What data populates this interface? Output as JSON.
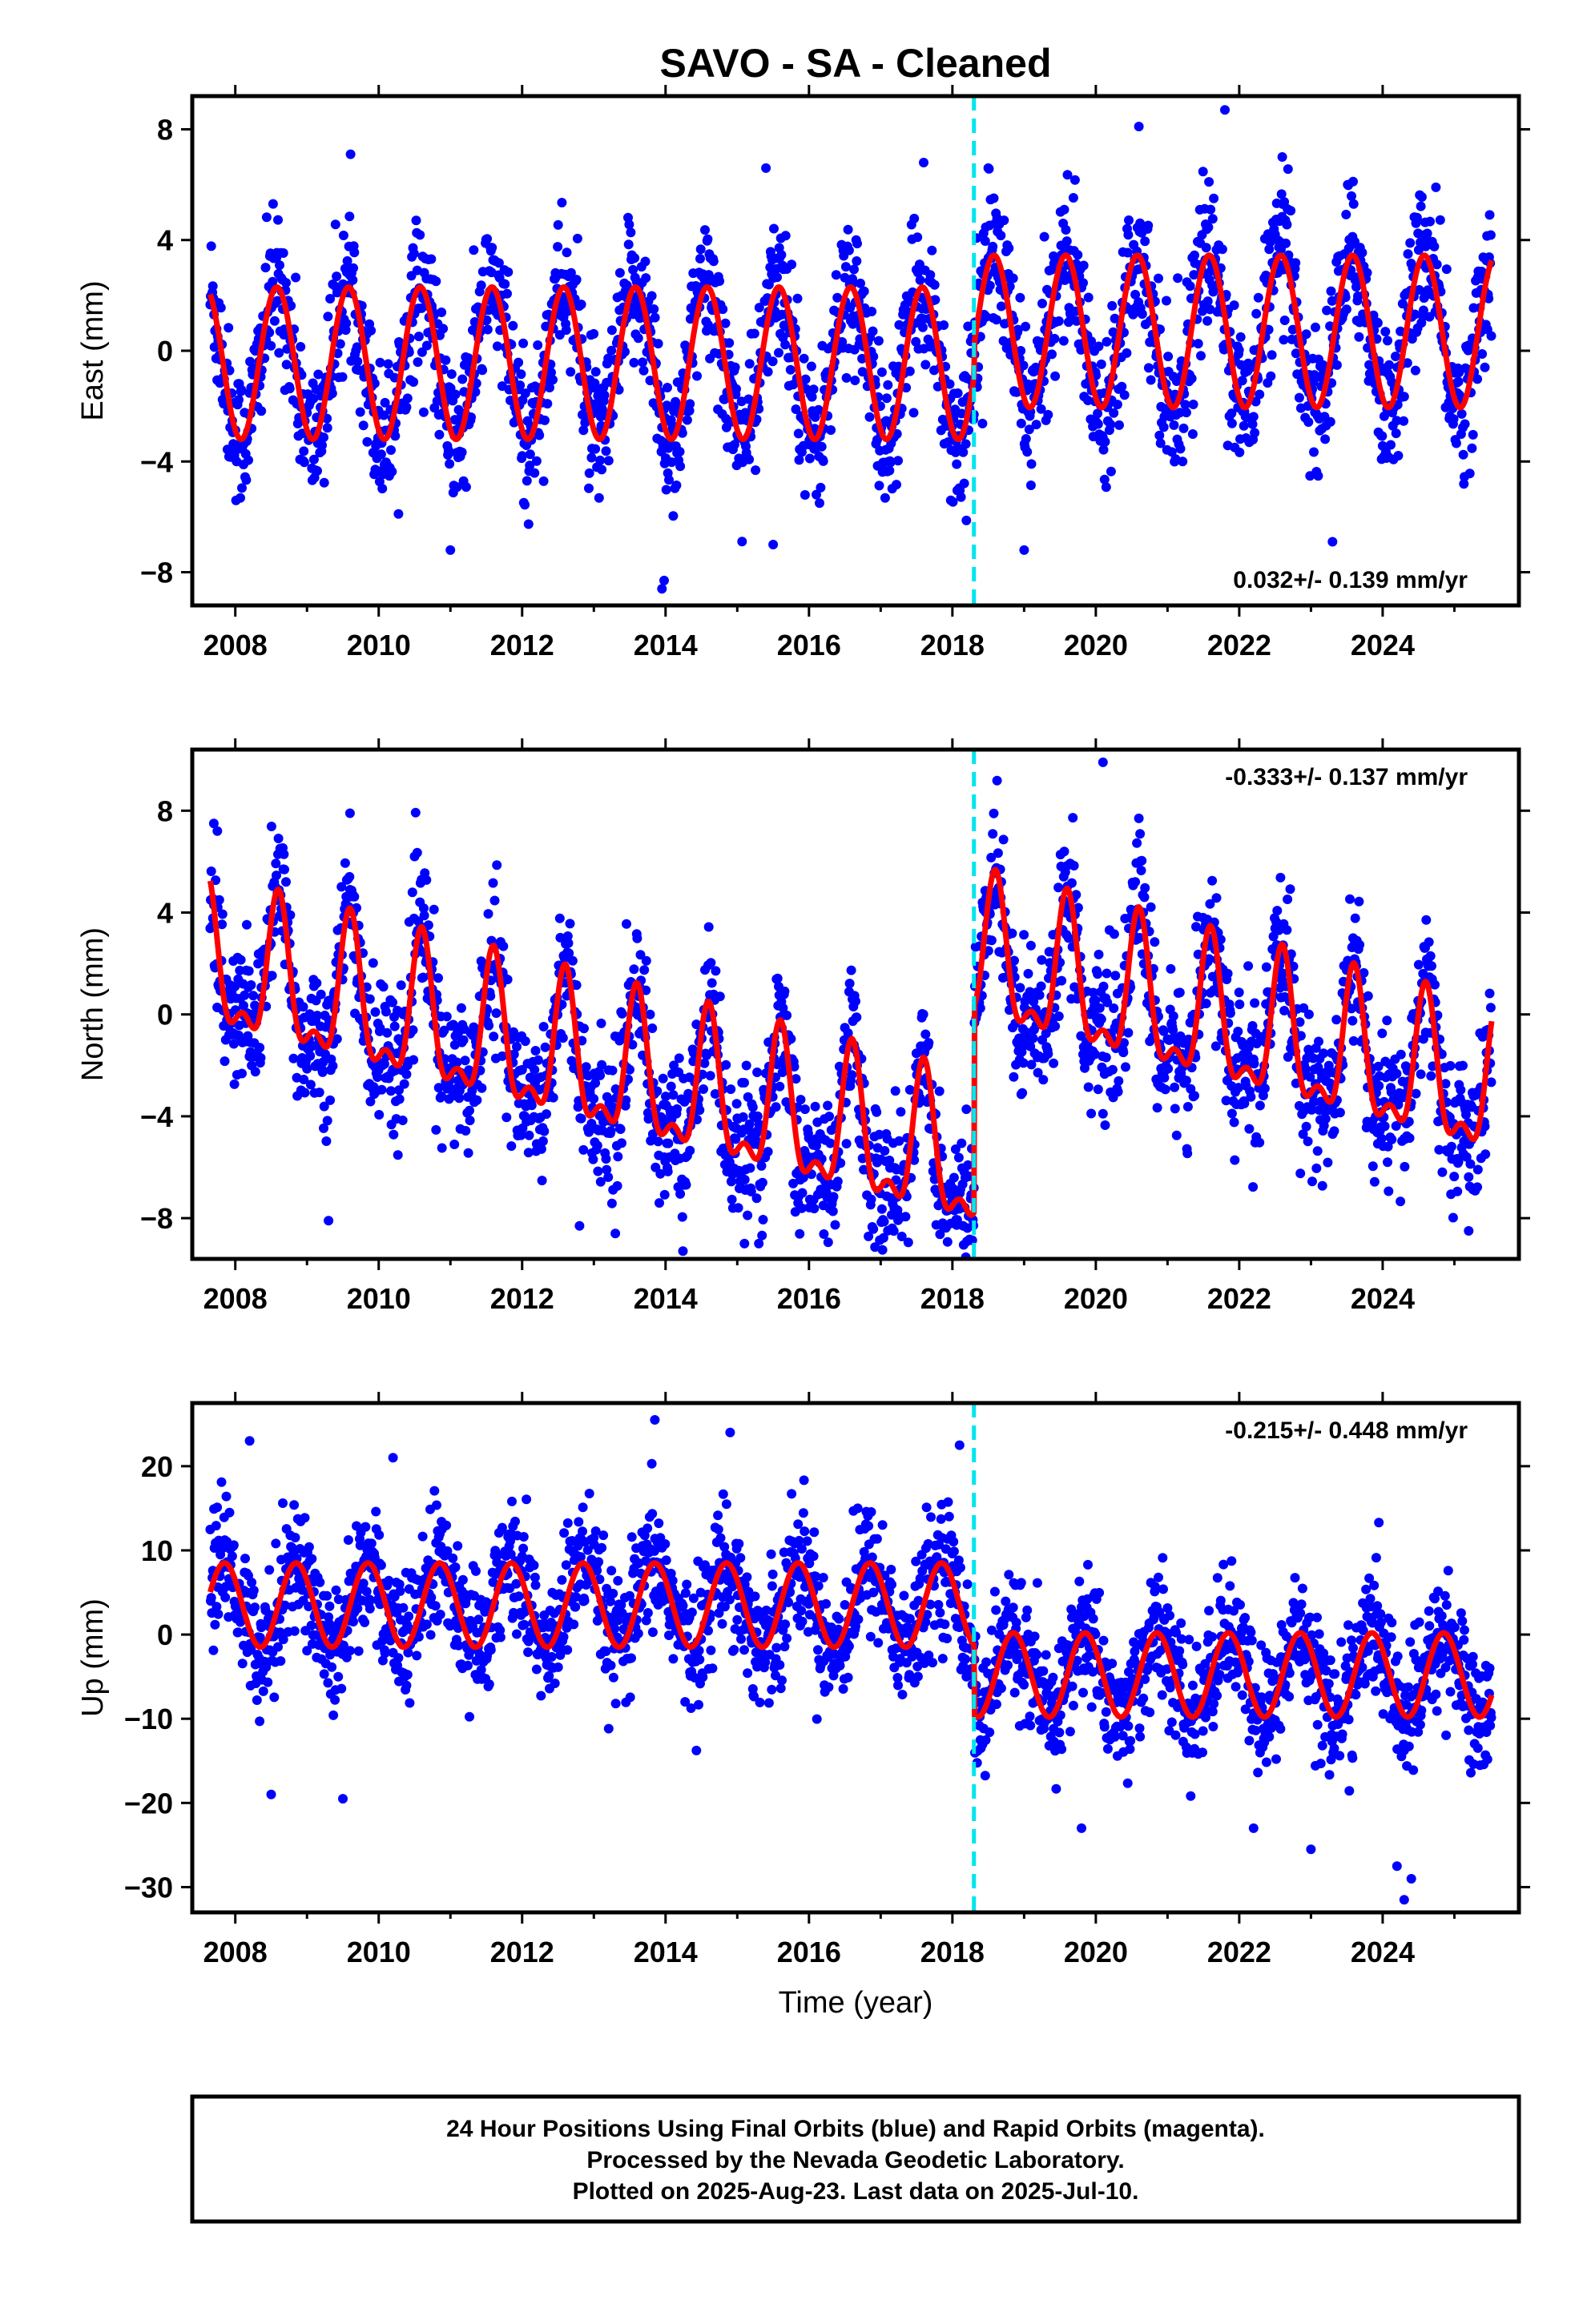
{
  "title": "SAVO  - SA - Cleaned",
  "colors": {
    "final_orbits": "#0000ff",
    "model": "#ff0000",
    "break_line": "#00e5ee",
    "frame": "#000000"
  },
  "xlabel": "Time (year)",
  "xticks": [
    "2008",
    "2010",
    "2012",
    "2014",
    "2016",
    "2018",
    "2020",
    "2022",
    "2024"
  ],
  "footer": {
    "line1": "24 Hour Positions Using Final Orbits (blue) and Rapid Orbits (magenta).",
    "line2": "Processed by the Nevada Geodetic Laboratory.",
    "line3": "Plotted on 2025-Aug-23. Last data on 2025-Jul-10."
  },
  "chart_data": [
    {
      "type": "scatter",
      "ylabel": "East (mm)",
      "rate_text": "0.032+/- 0.139 mm/yr",
      "rate_position": "bottom-right",
      "xlim": [
        2007.4,
        2025.9
      ],
      "ylim": [
        -9.2,
        9.2
      ],
      "yticks": [
        -8,
        -4,
        0,
        4,
        8
      ],
      "break_epoch": 2018.3,
      "data_span": [
        2007.65,
        2025.52
      ],
      "series": [
        {
          "color": "#0000ff",
          "values": "daily positions, annual cycle",
          "annual_amplitude_mm": 2.9,
          "scatter_mm": 1.3,
          "mean_mm": -0.4,
          "peak_phase": 0.58
        }
      ],
      "model_fit": {
        "amplitude_mm": 2.75,
        "phase": 0.58,
        "offset_before": -0.45,
        "offset_after": 0.7
      },
      "outliers": [
        {
          "x": 2013.95,
          "y": -8.6
        },
        {
          "x": 2013.98,
          "y": -8.3
        },
        {
          "x": 2021.8,
          "y": 8.7
        },
        {
          "x": 2020.6,
          "y": 8.1
        },
        {
          "x": 2017.6,
          "y": 6.8
        },
        {
          "x": 2018.5,
          "y": 6.6
        },
        {
          "x": 2015.4,
          "y": 6.6
        },
        {
          "x": 2022.6,
          "y": 7.0
        },
        {
          "x": 2011.0,
          "y": -7.2
        },
        {
          "x": 2015.5,
          "y": -7.0
        },
        {
          "x": 2019.0,
          "y": -7.2
        },
        {
          "x": 2023.3,
          "y": -6.9
        }
      ]
    },
    {
      "type": "scatter",
      "ylabel": "North (mm)",
      "rate_text": "-0.333+/- 0.137 mm/yr",
      "rate_position": "top-right",
      "xlim": [
        2007.4,
        2025.9
      ],
      "ylim": [
        -9.6,
        10.4
      ],
      "yticks": [
        -8,
        -4,
        0,
        4,
        8
      ],
      "break_epoch": 2018.3,
      "data_span": [
        2007.65,
        2025.52
      ],
      "series": [
        {
          "color": "#0000ff",
          "values": "daily positions, annual + semi-annual cycle",
          "annual_amplitude_mm": 2.6,
          "scatter_mm": 1.4,
          "trend_mm_per_yr": -0.333,
          "peak_phase": 0.6
        }
      ],
      "model_fit": {
        "amplitude_mm": 2.6,
        "semiannual_mm": 1.2,
        "phase": 0.6,
        "start_mm": 1.8,
        "offset_at_break_mm": 4.5
      },
      "outliers": [
        {
          "x": 2020.1,
          "y": 9.9
        },
        {
          "x": 2007.7,
          "y": 7.5
        },
        {
          "x": 2007.75,
          "y": 7.2
        },
        {
          "x": 2009.3,
          "y": -8.1
        },
        {
          "x": 2013.3,
          "y": -8.6
        },
        {
          "x": 2015.1,
          "y": -9.0
        },
        {
          "x": 2015.3,
          "y": -9.0
        },
        {
          "x": 2025.2,
          "y": -8.5
        },
        {
          "x": 2012.8,
          "y": -8.3
        },
        {
          "x": 2009.6,
          "y": 7.9
        },
        {
          "x": 2020.6,
          "y": 7.7
        }
      ]
    },
    {
      "type": "scatter",
      "ylabel": "Up (mm)",
      "rate_text": "-0.215+/- 0.448 mm/yr",
      "rate_position": "top-right",
      "xlim": [
        2007.4,
        2025.9
      ],
      "ylim": [
        -33,
        27.5
      ],
      "yticks": [
        -30,
        -20,
        -10,
        0,
        10,
        20
      ],
      "break_epoch": 2018.3,
      "data_span": [
        2007.65,
        2025.52
      ],
      "series": [
        {
          "color": "#0000ff",
          "values": "daily positions, annual cycle",
          "annual_amplitude_mm": 5.0,
          "scatter_mm": 3.8,
          "peak_phase": 0.85
        }
      ],
      "model_fit": {
        "amplitude_mm": 5.0,
        "phase": 0.85,
        "offset_before": 3.5,
        "offset_after": -4.8
      },
      "outliers": [
        {
          "x": 2013.85,
          "y": 25.5
        },
        {
          "x": 2014.9,
          "y": 24.0
        },
        {
          "x": 2008.2,
          "y": 23.0
        },
        {
          "x": 2018.1,
          "y": 22.5
        },
        {
          "x": 2010.2,
          "y": 21.0
        },
        {
          "x": 2024.3,
          "y": -31.5
        },
        {
          "x": 2024.4,
          "y": -29.0
        },
        {
          "x": 2024.2,
          "y": -27.5
        },
        {
          "x": 2023.0,
          "y": -25.5
        },
        {
          "x": 2008.5,
          "y": -19.0
        },
        {
          "x": 2009.5,
          "y": -19.5
        },
        {
          "x": 2019.8,
          "y": -23.0
        },
        {
          "x": 2022.2,
          "y": -23.0
        }
      ]
    }
  ]
}
